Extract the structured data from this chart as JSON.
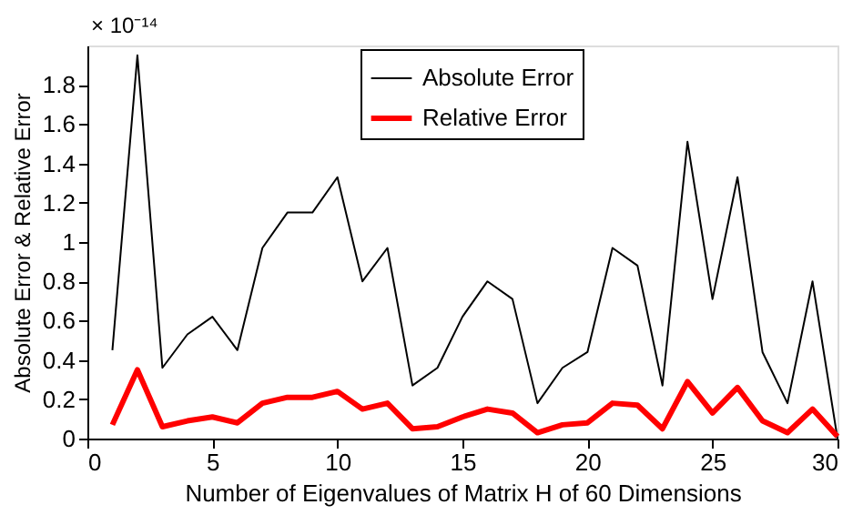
{
  "chart_data": {
    "type": "line",
    "xlabel": "Number of Eigenvalues of Matrix H of 60 Dimensions",
    "ylabel": "Absolute Error  &  Relative Error",
    "annotations": [
      "× 10⁻¹⁴"
    ],
    "x": [
      1,
      2,
      3,
      4,
      5,
      6,
      7,
      8,
      9,
      10,
      11,
      12,
      13,
      14,
      15,
      16,
      17,
      18,
      19,
      20,
      21,
      22,
      23,
      24,
      25,
      26,
      27,
      28,
      29,
      30
    ],
    "series": [
      {
        "name": "Absolute Error",
        "color": "#000000",
        "values": [
          0.45,
          1.95,
          0.36,
          0.53,
          0.62,
          0.45,
          0.97,
          1.15,
          1.15,
          1.33,
          0.8,
          0.97,
          0.27,
          0.36,
          0.62,
          0.8,
          0.71,
          0.18,
          0.36,
          0.44,
          0.97,
          0.88,
          0.27,
          1.51,
          0.71,
          1.33,
          0.44,
          0.18,
          0.8,
          0.0
        ]
      },
      {
        "name": "Relative Error",
        "color": "#ff0000",
        "values": [
          0.07,
          0.35,
          0.06,
          0.09,
          0.11,
          0.08,
          0.18,
          0.21,
          0.21,
          0.24,
          0.15,
          0.18,
          0.05,
          0.06,
          0.11,
          0.15,
          0.13,
          0.03,
          0.07,
          0.08,
          0.18,
          0.17,
          0.05,
          0.29,
          0.13,
          0.26,
          0.09,
          0.03,
          0.15,
          0.01
        ]
      }
    ],
    "xlim": [
      0,
      30
    ],
    "xticks": [
      0,
      5,
      10,
      15,
      20,
      25,
      30
    ],
    "ylim": [
      0,
      2
    ],
    "yticks": [
      0,
      0.2,
      0.4,
      0.6,
      0.8,
      1,
      1.2,
      1.4,
      1.6,
      1.8
    ],
    "grid": false,
    "legend": "top",
    "marker": "none",
    "line_style": "solid"
  }
}
